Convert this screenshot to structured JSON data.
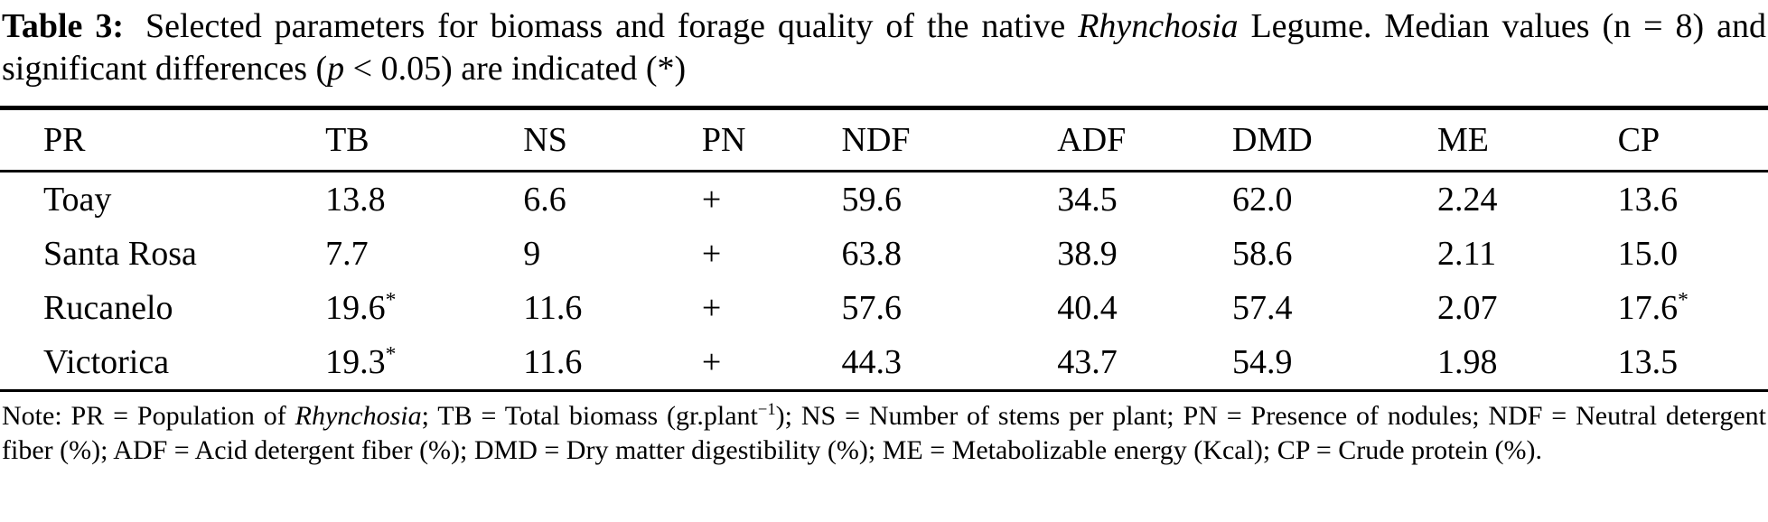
{
  "caption": {
    "label": "Table 3:",
    "text_1": " Selected parameters for biomass and forage quality of the native ",
    "species": "Rhynchosia",
    "text_2": " Legume. Median values (n = 8) and significant differences (",
    "p_symbol": "p",
    "text_3": " < 0.05) are indicated (*)"
  },
  "table": {
    "columns": [
      "PR",
      "TB",
      "NS",
      "PN",
      "NDF",
      "ADF",
      "DMD",
      "ME",
      "CP"
    ],
    "rows": [
      [
        {
          "v": "Toay"
        },
        {
          "v": "13.8"
        },
        {
          "v": "6.6"
        },
        {
          "v": "+"
        },
        {
          "v": "59.6"
        },
        {
          "v": "34.5"
        },
        {
          "v": "62.0"
        },
        {
          "v": "2.24"
        },
        {
          "v": "13.6"
        }
      ],
      [
        {
          "v": "Santa Rosa"
        },
        {
          "v": "7.7"
        },
        {
          "v": "9"
        },
        {
          "v": "+"
        },
        {
          "v": "63.8"
        },
        {
          "v": "38.9"
        },
        {
          "v": "58.6"
        },
        {
          "v": "2.11"
        },
        {
          "v": "15.0"
        }
      ],
      [
        {
          "v": "Rucanelo"
        },
        {
          "v": "19.6",
          "sup": "*"
        },
        {
          "v": "11.6"
        },
        {
          "v": "+"
        },
        {
          "v": "57.6"
        },
        {
          "v": "40.4"
        },
        {
          "v": "57.4"
        },
        {
          "v": "2.07"
        },
        {
          "v": "17.6",
          "sup": "*"
        }
      ],
      [
        {
          "v": "Victorica"
        },
        {
          "v": "19.3",
          "sup": "*"
        },
        {
          "v": "11.6"
        },
        {
          "v": "+"
        },
        {
          "v": "44.3"
        },
        {
          "v": "43.7"
        },
        {
          "v": "54.9"
        },
        {
          "v": "1.98"
        },
        {
          "v": "13.5"
        }
      ]
    ]
  },
  "note": {
    "text_1": "Note: PR = Population of ",
    "species": "Rhynchosia",
    "text_2": "; TB = Total biomass (gr.plant",
    "superscript": "−1",
    "text_3": "); NS = Number of stems per plant; PN = Presence of nodules; NDF = Neutral detergent fiber (%); ADF = Acid detergent fiber (%); DMD = Dry matter digestibility (%); ME = Metabolizable energy (Kcal); CP = Crude protein (%)."
  }
}
